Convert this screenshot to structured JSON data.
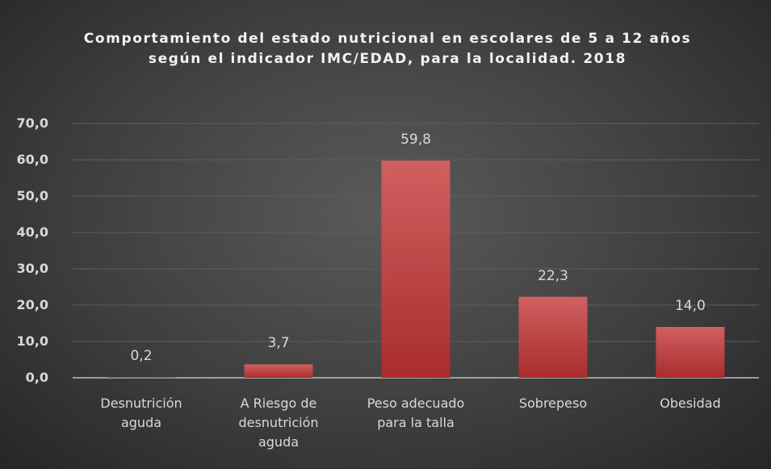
{
  "chart_data": {
    "type": "bar",
    "title": "Comportamiento del estado nutricional en escolares de 5 a 12 años según el indicador IMC/EDAD, para la localidad. 2018",
    "categories": [
      "Desnutrición aguda",
      "A Riesgo de desnutrición aguda",
      "Peso adecuado para la talla",
      "Sobrepeso",
      "Obesidad"
    ],
    "values": [
      0.2,
      3.7,
      59.8,
      22.3,
      14.0
    ],
    "value_labels": [
      "0,2",
      "3,7",
      "59,8",
      "22,3",
      "14,0"
    ],
    "color": "#c0393b",
    "ylim": [
      0,
      70
    ],
    "yticks": [
      {
        "value": 0,
        "label": "0,0"
      },
      {
        "value": 10,
        "label": "10,0"
      },
      {
        "value": 20,
        "label": "20,0"
      },
      {
        "value": 30,
        "label": "30,0"
      },
      {
        "value": 40,
        "label": "40,0"
      },
      {
        "value": 50,
        "label": "50,0"
      },
      {
        "value": 60,
        "label": "60,0"
      },
      {
        "value": 70,
        "label": "70,0"
      }
    ],
    "grid": true
  }
}
